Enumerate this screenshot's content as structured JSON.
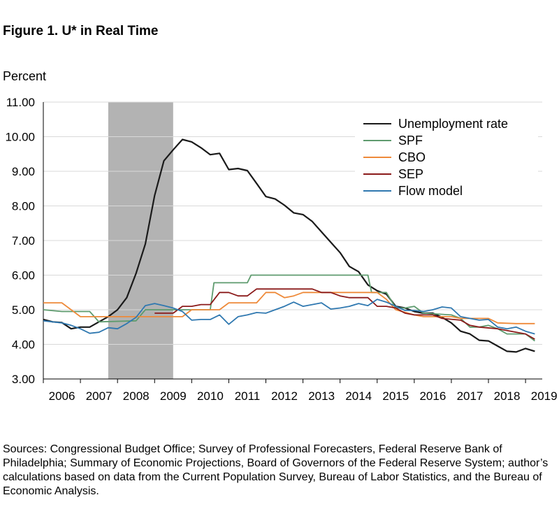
{
  "title": "Figure 1. U* in Real Time",
  "sources": "Sources: Congressional Budget Office; Survey of Professional Forecasters, Federal Reserve Bank of Philadelphia; Summary of Economic Projections, Board of Governors of the Federal Reserve System; author’s calculations based on data from the Current Population Survey, Bureau of Labor Statistics, and the Bureau of Economic Analysis.",
  "chart_data": {
    "type": "line",
    "title": "Figure 1. U* in Real Time",
    "ylabel": "Percent",
    "xlabel": "",
    "xlim": [
      2006,
      2019.45
    ],
    "ylim": [
      3.0,
      11.0
    ],
    "x_ticks": [
      "2006",
      "2007",
      "2008",
      "2009",
      "2010",
      "2011",
      "2012",
      "2013",
      "2014",
      "2015",
      "2016",
      "2017",
      "2018",
      "2019"
    ],
    "y_ticks": [
      "3.00",
      "4.00",
      "5.00",
      "6.00",
      "7.00",
      "8.00",
      "9.00",
      "10.00",
      "11.00"
    ],
    "grid": true,
    "legend_position": "top-right",
    "recession_shading": [
      2007.75,
      2009.5
    ],
    "series": [
      {
        "name": "Unemployment rate",
        "color": "#1a1a1a",
        "points": [
          [
            2006.0,
            4.72
          ],
          [
            2006.25,
            4.65
          ],
          [
            2006.5,
            4.63
          ],
          [
            2006.75,
            4.45
          ],
          [
            2007.0,
            4.5
          ],
          [
            2007.25,
            4.5
          ],
          [
            2007.5,
            4.65
          ],
          [
            2007.75,
            4.8
          ],
          [
            2008.0,
            5.0
          ],
          [
            2008.25,
            5.35
          ],
          [
            2008.5,
            6.05
          ],
          [
            2008.75,
            6.9
          ],
          [
            2009.0,
            8.3
          ],
          [
            2009.25,
            9.3
          ],
          [
            2009.5,
            9.62
          ],
          [
            2009.75,
            9.92
          ],
          [
            2010.0,
            9.85
          ],
          [
            2010.25,
            9.68
          ],
          [
            2010.5,
            9.48
          ],
          [
            2010.75,
            9.52
          ],
          [
            2011.0,
            9.05
          ],
          [
            2011.25,
            9.08
          ],
          [
            2011.5,
            9.02
          ],
          [
            2011.75,
            8.65
          ],
          [
            2012.0,
            8.27
          ],
          [
            2012.25,
            8.2
          ],
          [
            2012.5,
            8.02
          ],
          [
            2012.75,
            7.8
          ],
          [
            2013.0,
            7.75
          ],
          [
            2013.25,
            7.55
          ],
          [
            2013.5,
            7.25
          ],
          [
            2013.75,
            6.95
          ],
          [
            2014.0,
            6.65
          ],
          [
            2014.25,
            6.25
          ],
          [
            2014.5,
            6.1
          ],
          [
            2014.75,
            5.72
          ],
          [
            2015.0,
            5.55
          ],
          [
            2015.25,
            5.45
          ],
          [
            2015.5,
            5.1
          ],
          [
            2015.75,
            5.05
          ],
          [
            2016.0,
            4.95
          ],
          [
            2016.25,
            4.9
          ],
          [
            2016.5,
            4.9
          ],
          [
            2016.75,
            4.78
          ],
          [
            2017.0,
            4.62
          ],
          [
            2017.25,
            4.38
          ],
          [
            2017.5,
            4.3
          ],
          [
            2017.75,
            4.12
          ],
          [
            2018.0,
            4.1
          ],
          [
            2018.25,
            3.95
          ],
          [
            2018.5,
            3.8
          ],
          [
            2018.75,
            3.78
          ],
          [
            2019.0,
            3.88
          ],
          [
            2019.25,
            3.8
          ]
        ]
      },
      {
        "name": "SPF",
        "color": "#5e9b6e",
        "points": [
          [
            2006.0,
            5.0
          ],
          [
            2006.5,
            4.95
          ],
          [
            2007.25,
            4.95
          ],
          [
            2007.5,
            4.65
          ],
          [
            2008.5,
            4.68
          ],
          [
            2008.75,
            5.0
          ],
          [
            2010.5,
            5.0
          ],
          [
            2010.6,
            5.78
          ],
          [
            2011.5,
            5.78
          ],
          [
            2011.6,
            6.0
          ],
          [
            2014.75,
            6.0
          ],
          [
            2014.85,
            5.5
          ],
          [
            2015.25,
            5.5
          ],
          [
            2015.5,
            5.05
          ],
          [
            2015.75,
            5.05
          ],
          [
            2016.0,
            5.1
          ],
          [
            2016.25,
            4.9
          ],
          [
            2017.0,
            4.85
          ],
          [
            2017.25,
            4.75
          ],
          [
            2017.5,
            4.5
          ],
          [
            2017.75,
            4.5
          ],
          [
            2018.0,
            4.55
          ],
          [
            2018.25,
            4.45
          ],
          [
            2018.5,
            4.3
          ],
          [
            2019.0,
            4.3
          ],
          [
            2019.25,
            4.1
          ]
        ]
      },
      {
        "name": "CBO",
        "color": "#ee8a3a",
        "points": [
          [
            2006.0,
            5.2
          ],
          [
            2006.5,
            5.2
          ],
          [
            2006.75,
            5.0
          ],
          [
            2007.0,
            4.8
          ],
          [
            2009.75,
            4.8
          ],
          [
            2010.0,
            5.0
          ],
          [
            2010.75,
            5.0
          ],
          [
            2011.0,
            5.2
          ],
          [
            2011.75,
            5.2
          ],
          [
            2012.0,
            5.5
          ],
          [
            2012.25,
            5.5
          ],
          [
            2012.5,
            5.35
          ],
          [
            2012.75,
            5.4
          ],
          [
            2013.0,
            5.5
          ],
          [
            2015.0,
            5.5
          ],
          [
            2015.25,
            5.3
          ],
          [
            2015.5,
            5.0
          ],
          [
            2016.0,
            4.85
          ],
          [
            2016.25,
            4.8
          ],
          [
            2017.0,
            4.8
          ],
          [
            2017.25,
            4.75
          ],
          [
            2018.0,
            4.75
          ],
          [
            2018.25,
            4.62
          ],
          [
            2018.75,
            4.6
          ],
          [
            2019.25,
            4.6
          ]
        ]
      },
      {
        "name": "SEP",
        "color": "#8b1a1a",
        "points": [
          [
            2009.0,
            4.9
          ],
          [
            2009.5,
            4.9
          ],
          [
            2009.75,
            5.1
          ],
          [
            2010.0,
            5.1
          ],
          [
            2010.25,
            5.15
          ],
          [
            2010.5,
            5.15
          ],
          [
            2010.75,
            5.5
          ],
          [
            2011.0,
            5.5
          ],
          [
            2011.25,
            5.4
          ],
          [
            2011.5,
            5.4
          ],
          [
            2011.75,
            5.6
          ],
          [
            2013.25,
            5.6
          ],
          [
            2013.5,
            5.5
          ],
          [
            2013.75,
            5.5
          ],
          [
            2014.0,
            5.4
          ],
          [
            2014.25,
            5.35
          ],
          [
            2014.75,
            5.35
          ],
          [
            2015.0,
            5.1
          ],
          [
            2015.25,
            5.1
          ],
          [
            2015.5,
            5.05
          ],
          [
            2015.75,
            4.9
          ],
          [
            2016.0,
            4.85
          ],
          [
            2016.5,
            4.85
          ],
          [
            2016.75,
            4.75
          ],
          [
            2017.25,
            4.7
          ],
          [
            2017.5,
            4.55
          ],
          [
            2017.75,
            4.5
          ],
          [
            2018.25,
            4.45
          ],
          [
            2018.5,
            4.4
          ],
          [
            2019.0,
            4.3
          ],
          [
            2019.25,
            4.15
          ]
        ]
      },
      {
        "name": "Flow model",
        "color": "#2f78b0",
        "points": [
          [
            2006.0,
            4.68
          ],
          [
            2006.25,
            4.65
          ],
          [
            2006.5,
            4.62
          ],
          [
            2006.75,
            4.55
          ],
          [
            2007.0,
            4.45
          ],
          [
            2007.25,
            4.32
          ],
          [
            2007.5,
            4.35
          ],
          [
            2007.75,
            4.48
          ],
          [
            2008.0,
            4.45
          ],
          [
            2008.25,
            4.6
          ],
          [
            2008.5,
            4.78
          ],
          [
            2008.75,
            5.12
          ],
          [
            2009.0,
            5.18
          ],
          [
            2009.25,
            5.12
          ],
          [
            2009.5,
            5.05
          ],
          [
            2009.75,
            4.95
          ],
          [
            2010.0,
            4.7
          ],
          [
            2010.25,
            4.72
          ],
          [
            2010.5,
            4.72
          ],
          [
            2010.75,
            4.85
          ],
          [
            2011.0,
            4.58
          ],
          [
            2011.25,
            4.8
          ],
          [
            2011.5,
            4.85
          ],
          [
            2011.75,
            4.92
          ],
          [
            2012.0,
            4.9
          ],
          [
            2012.25,
            5.0
          ],
          [
            2012.5,
            5.1
          ],
          [
            2012.75,
            5.22
          ],
          [
            2013.0,
            5.1
          ],
          [
            2013.25,
            5.15
          ],
          [
            2013.5,
            5.2
          ],
          [
            2013.75,
            5.02
          ],
          [
            2014.0,
            5.05
          ],
          [
            2014.25,
            5.1
          ],
          [
            2014.5,
            5.18
          ],
          [
            2014.75,
            5.12
          ],
          [
            2015.0,
            5.3
          ],
          [
            2015.25,
            5.22
          ],
          [
            2015.5,
            5.1
          ],
          [
            2015.75,
            4.98
          ],
          [
            2016.0,
            4.98
          ],
          [
            2016.25,
            4.95
          ],
          [
            2016.5,
            5.0
          ],
          [
            2016.75,
            5.08
          ],
          [
            2017.0,
            5.05
          ],
          [
            2017.25,
            4.8
          ],
          [
            2017.5,
            4.75
          ],
          [
            2017.75,
            4.7
          ],
          [
            2018.0,
            4.72
          ],
          [
            2018.25,
            4.5
          ],
          [
            2018.5,
            4.45
          ],
          [
            2018.75,
            4.5
          ],
          [
            2019.0,
            4.38
          ],
          [
            2019.25,
            4.3
          ]
        ]
      }
    ]
  }
}
